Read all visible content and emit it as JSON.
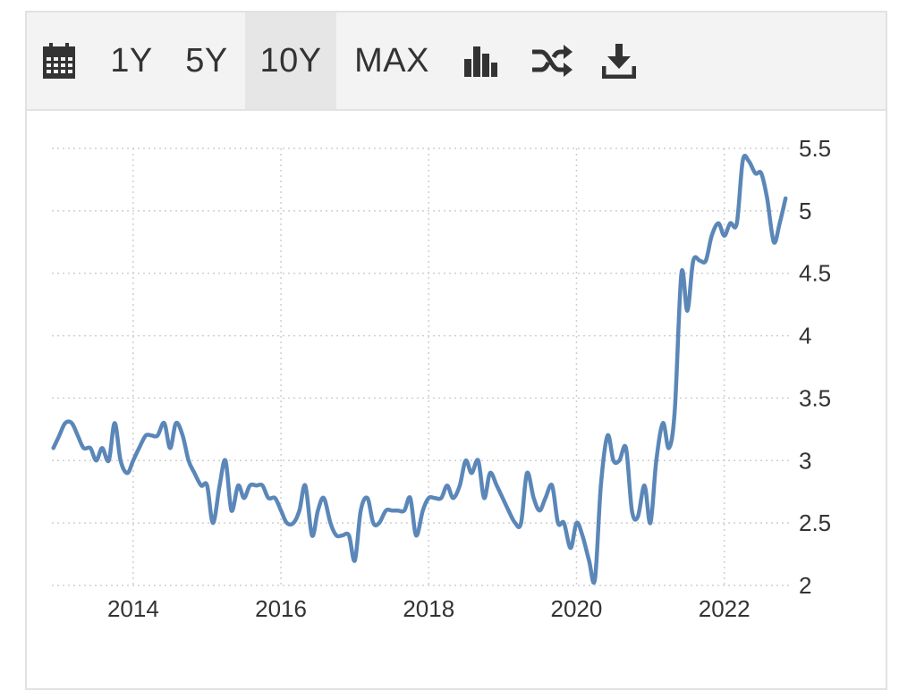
{
  "toolbar": {
    "calendar_icon": "calendar-icon",
    "range_buttons": [
      {
        "label": "1Y",
        "active": false
      },
      {
        "label": "5Y",
        "active": false
      },
      {
        "label": "10Y",
        "active": true
      },
      {
        "label": "MAX",
        "active": false
      }
    ],
    "bar_chart_icon": "bar-chart-icon",
    "shuffle_icon": "shuffle-icon",
    "download_icon": "download-icon"
  },
  "colors": {
    "line": "#5b87b8",
    "grid": "#cfcfcf",
    "toolbar_bg": "#f3f3f3",
    "active_bg": "#e6e6e6",
    "text": "#333333"
  },
  "chart_data": {
    "type": "line",
    "title": "",
    "xlabel": "",
    "ylabel": "",
    "x_ticks": [
      "2014",
      "2016",
      "2018",
      "2020",
      "2022"
    ],
    "y_ticks": [
      "2",
      "2.5",
      "3",
      "3.5",
      "4",
      "4.5",
      "5",
      "5.5"
    ],
    "ylim": [
      2,
      5.5
    ],
    "xlim": [
      2012.9,
      2022.9
    ],
    "grid": true,
    "y_axis_position": "right",
    "series": [
      {
        "name": "",
        "x": [
          2012.92,
          2013.0,
          2013.08,
          2013.17,
          2013.25,
          2013.33,
          2013.42,
          2013.5,
          2013.58,
          2013.67,
          2013.75,
          2013.83,
          2013.92,
          2014.0,
          2014.08,
          2014.17,
          2014.25,
          2014.33,
          2014.42,
          2014.5,
          2014.58,
          2014.67,
          2014.75,
          2014.83,
          2014.92,
          2015.0,
          2015.08,
          2015.17,
          2015.25,
          2015.33,
          2015.42,
          2015.5,
          2015.58,
          2015.67,
          2015.75,
          2015.83,
          2015.92,
          2016.0,
          2016.08,
          2016.17,
          2016.25,
          2016.33,
          2016.42,
          2016.5,
          2016.58,
          2016.67,
          2016.75,
          2016.83,
          2016.92,
          2017.0,
          2017.08,
          2017.17,
          2017.25,
          2017.33,
          2017.42,
          2017.5,
          2017.58,
          2017.67,
          2017.75,
          2017.83,
          2017.92,
          2018.0,
          2018.08,
          2018.17,
          2018.25,
          2018.33,
          2018.42,
          2018.5,
          2018.58,
          2018.67,
          2018.75,
          2018.83,
          2018.92,
          2019.0,
          2019.08,
          2019.17,
          2019.25,
          2019.33,
          2019.42,
          2019.5,
          2019.58,
          2019.67,
          2019.75,
          2019.83,
          2019.92,
          2020.0,
          2020.08,
          2020.17,
          2020.25,
          2020.33,
          2020.42,
          2020.5,
          2020.58,
          2020.67,
          2020.75,
          2020.83,
          2020.92,
          2021.0,
          2021.08,
          2021.17,
          2021.25,
          2021.33,
          2021.42,
          2021.5,
          2021.58,
          2021.67,
          2021.75,
          2021.83,
          2021.92,
          2022.0,
          2022.08,
          2022.17,
          2022.25,
          2022.33,
          2022.42,
          2022.5,
          2022.58,
          2022.67,
          2022.75,
          2022.83
        ],
        "y": [
          3.1,
          3.2,
          3.3,
          3.3,
          3.2,
          3.1,
          3.1,
          3.0,
          3.1,
          3.0,
          3.3,
          3.0,
          2.9,
          3.0,
          3.1,
          3.2,
          3.2,
          3.2,
          3.3,
          3.1,
          3.3,
          3.2,
          3.0,
          2.9,
          2.8,
          2.8,
          2.5,
          2.8,
          3.0,
          2.6,
          2.8,
          2.7,
          2.8,
          2.8,
          2.8,
          2.7,
          2.7,
          2.6,
          2.5,
          2.5,
          2.6,
          2.8,
          2.4,
          2.6,
          2.7,
          2.5,
          2.4,
          2.4,
          2.4,
          2.2,
          2.6,
          2.7,
          2.5,
          2.5,
          2.6,
          2.6,
          2.6,
          2.6,
          2.7,
          2.4,
          2.6,
          2.7,
          2.7,
          2.7,
          2.8,
          2.7,
          2.8,
          3.0,
          2.9,
          3.0,
          2.7,
          2.9,
          2.8,
          2.7,
          2.6,
          2.5,
          2.5,
          2.9,
          2.7,
          2.6,
          2.7,
          2.8,
          2.5,
          2.5,
          2.3,
          2.5,
          2.4,
          2.2,
          2.05,
          2.8,
          3.2,
          3.0,
          3.0,
          3.1,
          2.6,
          2.55,
          2.8,
          2.5,
          3.0,
          3.3,
          3.1,
          3.4,
          4.5,
          4.2,
          4.6,
          4.6,
          4.6,
          4.8,
          4.9,
          4.8,
          4.9,
          4.9,
          5.4,
          5.4,
          5.3,
          5.3,
          5.1,
          4.75,
          4.9,
          5.1
        ]
      }
    ]
  }
}
